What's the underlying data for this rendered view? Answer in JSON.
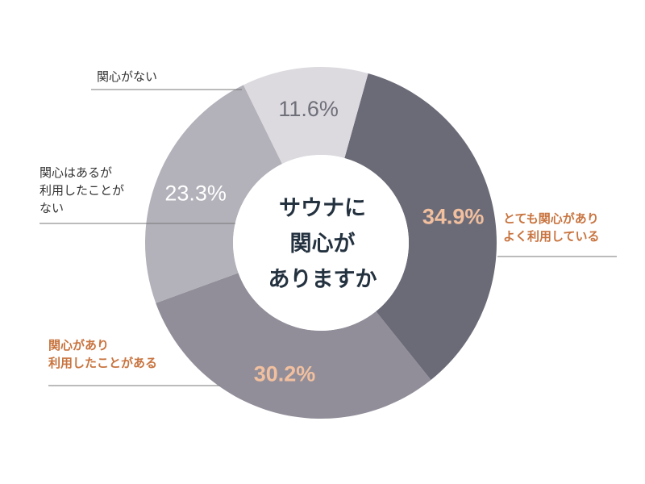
{
  "chart_data": {
    "type": "pie",
    "variant": "donut",
    "center_title_lines": [
      "サウナに",
      "関心が",
      "ありますか"
    ],
    "slices": [
      {
        "label_lines": [
          "とても関心があり",
          "よく利用している"
        ],
        "value": 34.9,
        "value_label": "34.9%",
        "color": "#6b6b78",
        "value_color": "#f2c09f",
        "label_color": "#c8743f",
        "emphasis": true
      },
      {
        "label_lines": [
          "関心があり",
          "利用したことがある"
        ],
        "value": 30.2,
        "value_label": "30.2%",
        "color": "#918e99",
        "value_color": "#f2c09f",
        "label_color": "#c8743f",
        "emphasis": true
      },
      {
        "label_lines": [
          "関心はあるが",
          "利用したことが",
          "ない"
        ],
        "value": 23.3,
        "value_label": "23.3%",
        "color": "#b3b1b9",
        "value_color": "#ffffff",
        "label_color": "#333333",
        "emphasis": false
      },
      {
        "label_lines": [
          "関心がない"
        ],
        "value": 11.6,
        "value_label": "11.6%",
        "color": "#dcdadf",
        "value_color": "#6f6f7a",
        "label_color": "#333333",
        "emphasis": false
      }
    ],
    "start_direction": "clockwise from approximately 15 degrees right of top",
    "center_title_color": "#243240",
    "leader_line_color": "#777777",
    "background": "#ffffff"
  }
}
